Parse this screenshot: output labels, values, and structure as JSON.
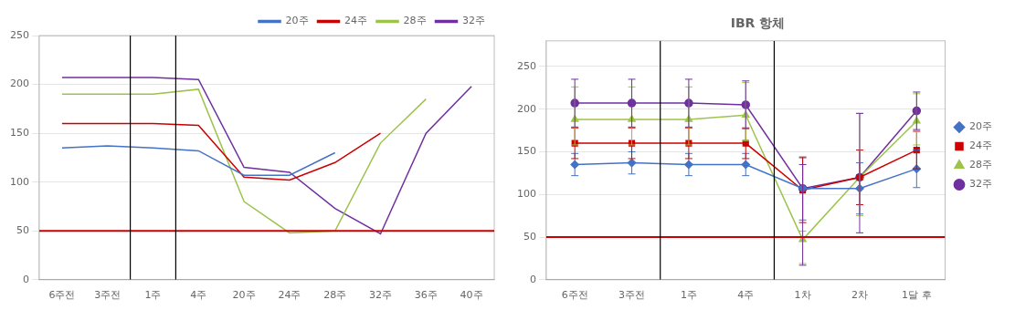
{
  "chart_data": [
    {
      "type": "line",
      "categories": [
        "6주전",
        "3주전",
        "1주",
        "4주",
        "20주",
        "24주",
        "28주",
        "32주",
        "36주",
        "40주"
      ],
      "series": [
        {
          "name": "20주",
          "color": "#4472C4",
          "values": [
            135,
            137,
            135,
            132,
            107,
            107,
            130,
            null,
            null,
            null
          ]
        },
        {
          "name": "24주",
          "color": "#CC0000",
          "values": [
            160,
            160,
            160,
            158,
            105,
            102,
            120,
            150,
            null,
            null
          ]
        },
        {
          "name": "28주",
          "color": "#9DC34A",
          "values": [
            190,
            190,
            190,
            195,
            80,
            48,
            50,
            140,
            185,
            null
          ]
        },
        {
          "name": "32주",
          "color": "#7030A0",
          "values": [
            207,
            207,
            207,
            205,
            115,
            110,
            73,
            47,
            150,
            198
          ]
        }
      ],
      "hline": {
        "y": 50,
        "color": "#CC0000"
      },
      "vlines": {
        "x": [
          1.5,
          2.5
        ],
        "color": "#000000"
      },
      "ylim": [
        0,
        250
      ],
      "yticks": [
        0,
        50,
        100,
        150,
        200,
        250
      ],
      "grid": true,
      "legend": "upper right"
    },
    {
      "type": "line",
      "title": "IBR 항체",
      "categories": [
        "6주전",
        "3주전",
        "1주",
        "4주",
        "1차",
        "2차",
        "1달 후"
      ],
      "series": [
        {
          "name": "20주",
          "color": "#4472C4",
          "marker": "diamond",
          "values": [
            135,
            137,
            135,
            135,
            107,
            107,
            130
          ],
          "yerr_low": [
            13,
            13,
            13,
            13,
            37,
            30,
            22
          ],
          "yerr_high": [
            13,
            13,
            13,
            13,
            37,
            30,
            22
          ]
        },
        {
          "name": "24주",
          "color": "#CC0000",
          "marker": "square",
          "values": [
            160,
            160,
            160,
            160,
            105,
            120,
            152
          ],
          "yerr_low": [
            18,
            18,
            18,
            18,
            38,
            32,
            22
          ],
          "yerr_high": [
            18,
            18,
            18,
            18,
            38,
            32,
            22
          ]
        },
        {
          "name": "28주",
          "color": "#9DC34A",
          "marker": "triangle",
          "values": [
            188,
            188,
            188,
            193,
            47,
            120,
            186
          ],
          "yerr_low": [
            30,
            30,
            30,
            30,
            28,
            45,
            28
          ],
          "yerr_high": [
            38,
            38,
            38,
            38,
            10,
            75,
            32
          ]
        },
        {
          "name": "32주",
          "color": "#7030A0",
          "marker": "circle",
          "values": [
            207,
            207,
            207,
            205,
            107,
            120,
            198
          ],
          "yerr_low": [
            28,
            28,
            28,
            28,
            90,
            65,
            22
          ],
          "yerr_high": [
            28,
            28,
            28,
            28,
            28,
            75,
            22
          ]
        }
      ],
      "hline": {
        "y": 50,
        "color": "#CC0000"
      },
      "vlines": {
        "x": [
          1.5,
          3.5
        ],
        "color": "#000000"
      },
      "ylim": [
        0,
        280
      ],
      "yticks": [
        0,
        50,
        100,
        150,
        200,
        250
      ],
      "grid": true,
      "legend": "center right"
    }
  ]
}
